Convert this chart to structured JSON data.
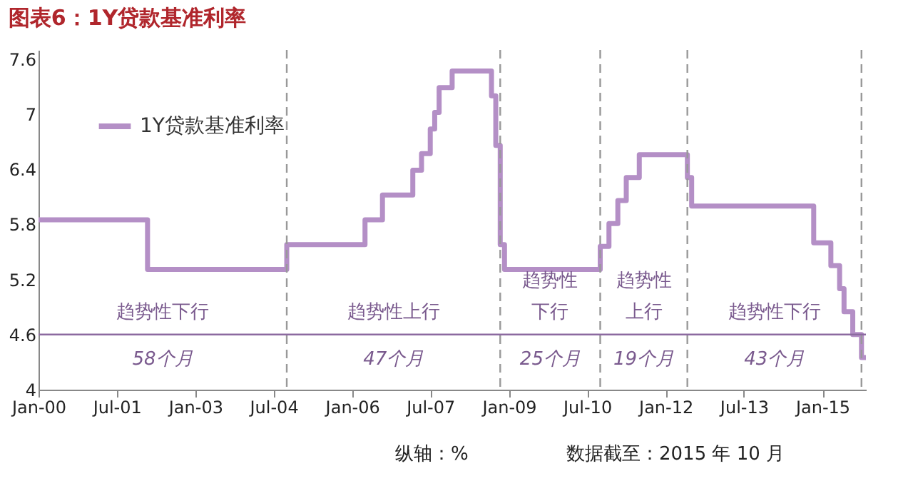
{
  "chart_data": {
    "type": "step",
    "title": "图表6：1Y贷款基准利率",
    "x": [
      "2000-01",
      "2002-02",
      "2004-10",
      "2006-04",
      "2006-08",
      "2007-03",
      "2007-05",
      "2007-07",
      "2007-08",
      "2007-09",
      "2007-12",
      "2008-09",
      "2008-10",
      "2008-11",
      "2008-12",
      "2010-10",
      "2010-12",
      "2011-02",
      "2011-04",
      "2011-07",
      "2012-06",
      "2012-07",
      "2014-11",
      "2015-03",
      "2015-05",
      "2015-06",
      "2015-08",
      "2015-10",
      "2015-11"
    ],
    "series": [
      {
        "name": "1Y贷款基准利率",
        "color": "#b48fc6",
        "values": [
          5.85,
          5.31,
          5.58,
          5.85,
          6.12,
          6.39,
          6.57,
          6.84,
          7.02,
          7.29,
          7.47,
          7.2,
          6.66,
          5.58,
          5.31,
          5.56,
          5.81,
          6.06,
          6.31,
          6.56,
          6.31,
          6.0,
          5.6,
          5.35,
          5.1,
          4.85,
          4.6,
          4.35,
          4.35
        ]
      }
    ],
    "xlim": [
      "2000-01",
      "2015-11"
    ],
    "xticks": [
      {
        "value": "2000-01",
        "label": "Jan-00"
      },
      {
        "value": "2001-07",
        "label": "Jul-01"
      },
      {
        "value": "2003-01",
        "label": "Jan-03"
      },
      {
        "value": "2004-07",
        "label": "Jul-04"
      },
      {
        "value": "2006-01",
        "label": "Jan-06"
      },
      {
        "value": "2007-07",
        "label": "Jul-07"
      },
      {
        "value": "2009-01",
        "label": "Jan-09"
      },
      {
        "value": "2010-07",
        "label": "Jul-10"
      },
      {
        "value": "2012-01",
        "label": "Jan-12"
      },
      {
        "value": "2013-07",
        "label": "Jul-13"
      },
      {
        "value": "2015-01",
        "label": "Jan-15"
      }
    ],
    "ylim": [
      4,
      7.7
    ],
    "yticks": [
      4,
      4.6,
      5.2,
      5.8,
      6.4,
      7,
      7.6
    ],
    "ref_lines": [
      {
        "axis": "x",
        "value": "2004-10",
        "line_style": "dashed",
        "color": "#999999"
      },
      {
        "axis": "x",
        "value": "2008-11",
        "line_style": "dashed",
        "color": "#999999"
      },
      {
        "axis": "x",
        "value": "2010-10",
        "line_style": "dashed",
        "color": "#999999"
      },
      {
        "axis": "x",
        "value": "2012-06",
        "line_style": "dashed",
        "color": "#999999"
      },
      {
        "axis": "x",
        "value": "2015-10",
        "line_style": "dashed",
        "color": "#999999"
      },
      {
        "axis": "y",
        "value": 4.6,
        "line_style": "solid",
        "color": "#8c6aa0"
      }
    ],
    "annotations": [
      "趋势性下行",
      "58个月",
      "趋势性上行",
      "47个月",
      "趋势性下行",
      "25个月",
      "趋势性上行",
      "19个月",
      "趋势性下行",
      "43个月",
      "纵轴：%",
      "数据截至：2015 年 10 月"
    ],
    "legend": "top left",
    "grid": false,
    "marker": "none",
    "line_style": "solid"
  }
}
